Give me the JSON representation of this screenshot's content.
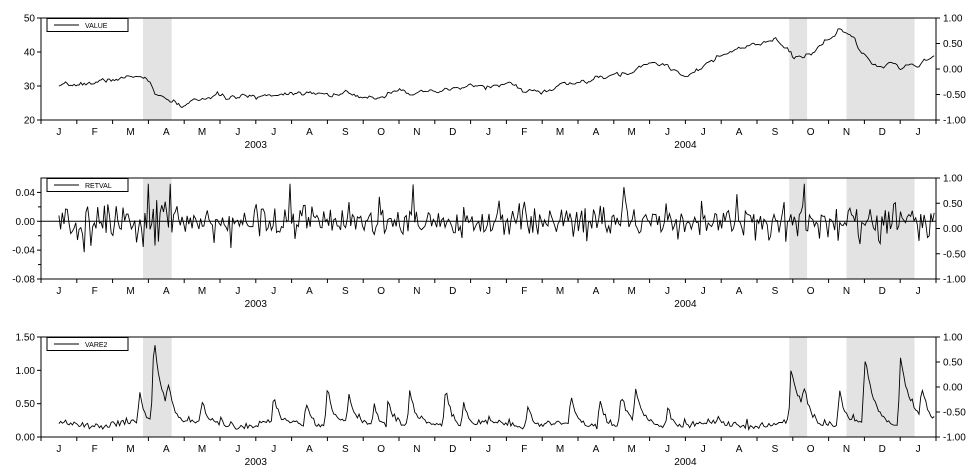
{
  "chart_data": [
    {
      "type": "line",
      "legend_label": "VALUE",
      "legend_placement": "top-left",
      "ylim": [
        20,
        50
      ],
      "yticks": [
        "20",
        "30",
        "40",
        "50"
      ],
      "y2lim": [
        -1.0,
        1.0
      ],
      "y2ticks": [
        "-1.00",
        "-0.50",
        "0.00",
        "0.50",
        "1.00"
      ],
      "month_labels": [
        "J",
        "F",
        "M",
        "A",
        "M",
        "J",
        "J",
        "A",
        "S",
        "O",
        "N",
        "D",
        "J",
        "F",
        "M",
        "A",
        "M",
        "J",
        "J",
        "A",
        "S",
        "O",
        "N",
        "D",
        "J"
      ],
      "year_labels": [
        "2003",
        "2004"
      ],
      "shaded_periods": [
        [
          2.85,
          3.65
        ],
        [
          20.9,
          21.4
        ],
        [
          22.5,
          24.4
        ]
      ],
      "x_knots": [
        0.5,
        1,
        1.5,
        2,
        2.5,
        2.9,
        3.05,
        3.2,
        3.4,
        3.7,
        4.0,
        4.3,
        4.6,
        5,
        5.5,
        6,
        6.5,
        7,
        7.5,
        8,
        8.5,
        9,
        9.5,
        10,
        10.5,
        11,
        11.5,
        12,
        12.5,
        13,
        13.5,
        14,
        14.5,
        15,
        15.5,
        16,
        16.5,
        17,
        17.5,
        18,
        18.5,
        19,
        19.5,
        20,
        20.5,
        20.85,
        21.0,
        21.3,
        21.6,
        22,
        22.3,
        22.6,
        22.9,
        23.2,
        23.5,
        23.8,
        24.0,
        24.3,
        24.6,
        24.9
      ],
      "y_knots": [
        29.5,
        30.5,
        31,
        32,
        32.5,
        33,
        31,
        27,
        26.5,
        25,
        24,
        26,
        26.5,
        27,
        26.5,
        27,
        27.5,
        28,
        28.5,
        27.5,
        28,
        26,
        27,
        29.5,
        27.5,
        28,
        29,
        30,
        30,
        30.5,
        29,
        28,
        30,
        31,
        32,
        33,
        34,
        37,
        36,
        33,
        36,
        38.5,
        41,
        42,
        43.5,
        41,
        38,
        38.5,
        40,
        44.5,
        46.5,
        45,
        40,
        37,
        35,
        36.5,
        35,
        36,
        36,
        39.5
      ],
      "noise": 0.55,
      "seed": 7
    },
    {
      "type": "line",
      "legend_label": "RETVAL",
      "legend_placement": "top-left",
      "ylim": [
        -0.08,
        0.06
      ],
      "yticks": [
        "-0.08",
        "-0.04",
        "0.00",
        "0.04"
      ],
      "zero_line": true,
      "y2lim": [
        -1.0,
        1.0
      ],
      "y2ticks": [
        "-1.00",
        "-0.50",
        "0.00",
        "0.50",
        "1.00"
      ],
      "month_labels": [
        "J",
        "F",
        "M",
        "A",
        "M",
        "J",
        "J",
        "A",
        "S",
        "O",
        "N",
        "D",
        "J",
        "F",
        "M",
        "A",
        "M",
        "J",
        "J",
        "A",
        "S",
        "O",
        "N",
        "D",
        "J"
      ],
      "year_labels": [
        "2003",
        "2004"
      ],
      "shaded_periods": [
        [
          2.85,
          3.65
        ],
        [
          20.9,
          21.4
        ],
        [
          22.5,
          24.4
        ]
      ],
      "base_amplitude": 0.012,
      "volatile_periods": [
        [
          2.85,
          3.65,
          2.6
        ],
        [
          20.9,
          21.4,
          1.6
        ],
        [
          22.5,
          24.4,
          1.5
        ],
        [
          11.0,
          11.4,
          1.3
        ]
      ],
      "seed": 21
    },
    {
      "type": "line",
      "legend_label": "VARE2",
      "legend_placement": "top-left",
      "ylim": [
        0.0,
        1.5
      ],
      "yticks": [
        "0.00",
        "0.50",
        "1.00",
        "1.50"
      ],
      "y2lim": [
        -1.0,
        1.0
      ],
      "y2ticks": [
        "-1.00",
        "-0.50",
        "0.00",
        "0.50",
        "1.00"
      ],
      "month_labels": [
        "J",
        "F",
        "M",
        "A",
        "M",
        "J",
        "J",
        "A",
        "S",
        "O",
        "N",
        "D",
        "J",
        "F",
        "M",
        "A",
        "M",
        "J",
        "J",
        "A",
        "S",
        "O",
        "N",
        "D",
        "J"
      ],
      "year_labels": [
        "2003",
        "2004"
      ],
      "shaded_periods": [
        [
          2.85,
          3.65
        ],
        [
          20.9,
          21.4
        ],
        [
          22.5,
          24.4
        ]
      ],
      "base_level": 0.15,
      "spikes": [
        [
          2.75,
          0.5
        ],
        [
          3.15,
          1.3
        ],
        [
          3.55,
          0.35
        ],
        [
          4.5,
          0.3
        ],
        [
          6.5,
          0.35
        ],
        [
          7.4,
          0.4
        ],
        [
          8.0,
          0.65
        ],
        [
          8.6,
          0.45
        ],
        [
          9.3,
          0.35
        ],
        [
          9.7,
          0.45
        ],
        [
          10.3,
          0.5
        ],
        [
          11.3,
          0.65
        ],
        [
          11.8,
          0.4
        ],
        [
          13.6,
          0.35
        ],
        [
          14.8,
          0.4
        ],
        [
          15.6,
          0.45
        ],
        [
          16.2,
          0.5
        ],
        [
          16.6,
          0.55
        ],
        [
          17.5,
          0.3
        ],
        [
          20.95,
          0.85
        ],
        [
          21.3,
          0.4
        ],
        [
          22.3,
          0.55
        ],
        [
          23.0,
          1.0
        ],
        [
          24.0,
          1.05
        ],
        [
          24.6,
          0.42
        ]
      ],
      "seed": 33
    }
  ]
}
